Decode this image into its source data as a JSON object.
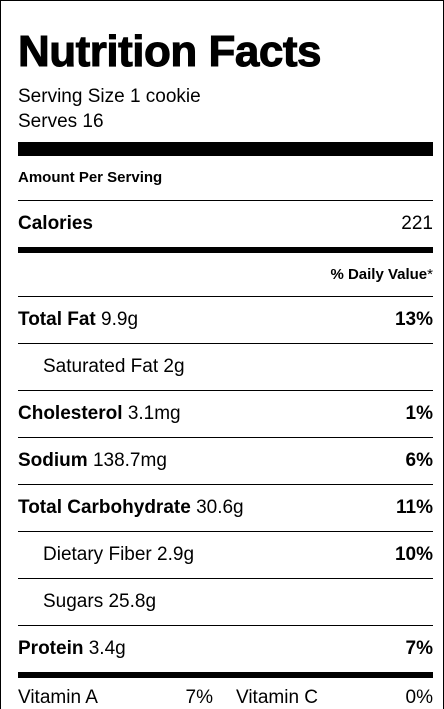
{
  "title": "Nutrition Facts",
  "serving_size": "Serving Size 1 cookie",
  "serves": "Serves 16",
  "amount_per_serving": "Amount Per Serving",
  "calories": {
    "label": "Calories",
    "value": "221"
  },
  "daily_value_header": "% Daily Value",
  "daily_value_star": "*",
  "nutrients": [
    {
      "name": "Total Fat",
      "amount": "9.9g",
      "pct": "13%"
    },
    {
      "name": "Saturated Fat",
      "amount": "2g",
      "pct": ""
    },
    {
      "name": "Cholesterol",
      "amount": "3.1mg",
      "pct": "1%"
    },
    {
      "name": "Sodium",
      "amount": "138.7mg",
      "pct": "6%"
    },
    {
      "name": "Total Carbohydrate",
      "amount": "30.6g",
      "pct": "11%"
    },
    {
      "name": "Dietary Fiber",
      "amount": "2.9g",
      "pct": "10%"
    },
    {
      "name": "Sugars",
      "amount": "25.8g",
      "pct": ""
    },
    {
      "name": "Protein",
      "amount": "3.4g",
      "pct": "7%"
    }
  ],
  "vitamins": {
    "a": {
      "label": "Vitamin A",
      "value": "7%"
    },
    "c": {
      "label": "Vitamin C",
      "value": "0%"
    }
  }
}
